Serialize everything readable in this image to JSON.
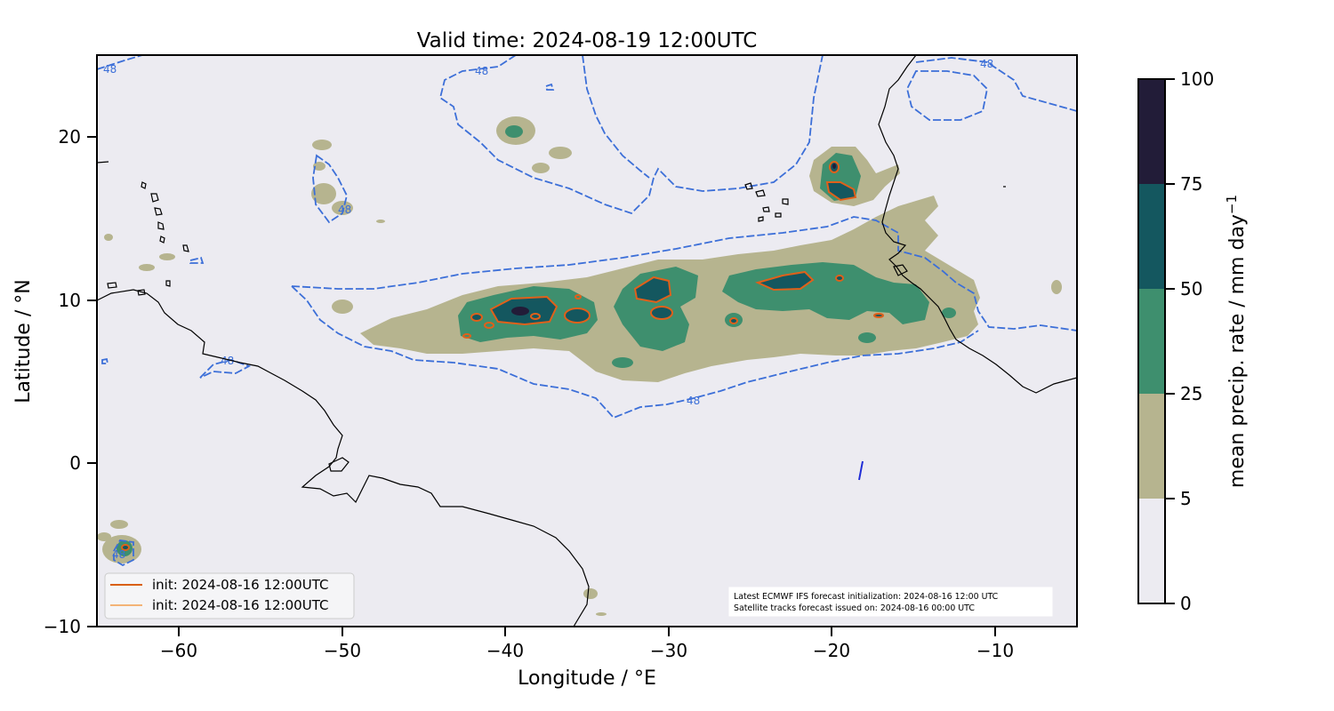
{
  "title": "Valid time: 2024-08-19 12:00UTC",
  "x_axis": {
    "label": "Longitude / °E",
    "ticks": [
      -60,
      -50,
      -40,
      -30,
      -20,
      -10
    ],
    "tick_labels": [
      "−60",
      "−50",
      "−40",
      "−30",
      "−20",
      "−10"
    ],
    "range": [
      -65,
      -5
    ]
  },
  "y_axis": {
    "label": "Latitude / °N",
    "ticks": [
      -10,
      0,
      10,
      20
    ],
    "tick_labels": [
      "−10",
      "0",
      "10",
      "20"
    ],
    "range": [
      -10,
      25
    ]
  },
  "colorbar": {
    "label": "mean precip. rate / mm day",
    "label_superscript": "−1",
    "levels": [
      0,
      5,
      25,
      50,
      75,
      100
    ],
    "level_labels": [
      "0",
      "5",
      "25",
      "50",
      "75",
      "100"
    ],
    "colors": [
      "#ecebf1",
      "#b6b48f",
      "#3e8f6e",
      "#14575f",
      "#221c38"
    ]
  },
  "legend": {
    "placement": "bottom-left",
    "entries": [
      {
        "label": "init: 2024-08-16 12:00UTC",
        "color": "#d95f0e",
        "weight": "thick"
      },
      {
        "label": "init: 2024-08-16 12:00UTC",
        "color": "#f28e2b",
        "weight": "thin"
      }
    ]
  },
  "info_box": {
    "placement": "bottom-right",
    "line1": "Latest ECMWF IFS forecast initialization: 2024-08-16 12:00 UTC",
    "line2": "Satellite tracks forecast issued on: 2024-08-16 00:00 UTC"
  },
  "contour_label": "48",
  "colors": {
    "background": "#ecebf1",
    "contour_48": "#3c6fd8",
    "coastline": "#000000",
    "threshold_contour": "#e0601a",
    "satellite_track": "#1f2cd6"
  }
}
